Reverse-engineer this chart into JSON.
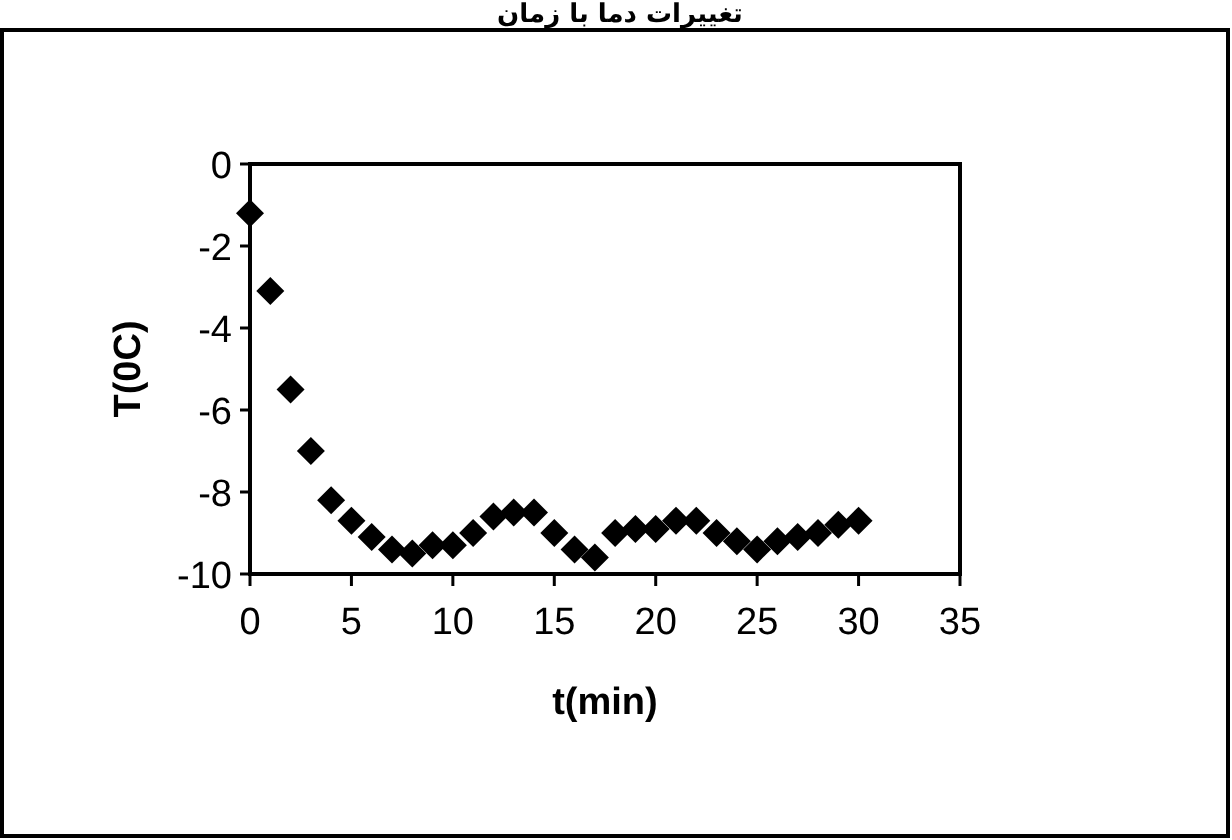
{
  "chart_data": {
    "type": "scatter",
    "title": "تغییرات دما با زمان",
    "xlabel": "t(min)",
    "ylabel": "T(0C)",
    "x": [
      0,
      1,
      2,
      3,
      4,
      5,
      6,
      7,
      8,
      9,
      10,
      11,
      12,
      13,
      14,
      15,
      16,
      17,
      18,
      19,
      20,
      21,
      22,
      23,
      24,
      25,
      26,
      27,
      28,
      29,
      30
    ],
    "series": [
      {
        "color": "#000000",
        "values": [
          -1.2,
          -3.1,
          -5.5,
          -7.0,
          -8.2,
          -8.7,
          -9.1,
          -9.4,
          -9.5,
          -9.3,
          -9.3,
          -9.0,
          -8.6,
          -8.5,
          -8.5,
          -9.0,
          -9.4,
          -9.6,
          -9.0,
          -8.9,
          -8.9,
          -8.7,
          -8.7,
          -9.0,
          -9.2,
          -9.4,
          -9.2,
          -9.1,
          -9.0,
          -8.8,
          -8.7
        ]
      }
    ],
    "marker": "diamond",
    "xlim": [
      0,
      35
    ],
    "xticks": [
      0,
      5,
      10,
      15,
      20,
      25,
      30,
      35
    ],
    "ylim": [
      -10,
      0
    ],
    "yticks": [
      -10,
      -8,
      -6,
      -4,
      -2,
      0
    ],
    "grid": false
  }
}
